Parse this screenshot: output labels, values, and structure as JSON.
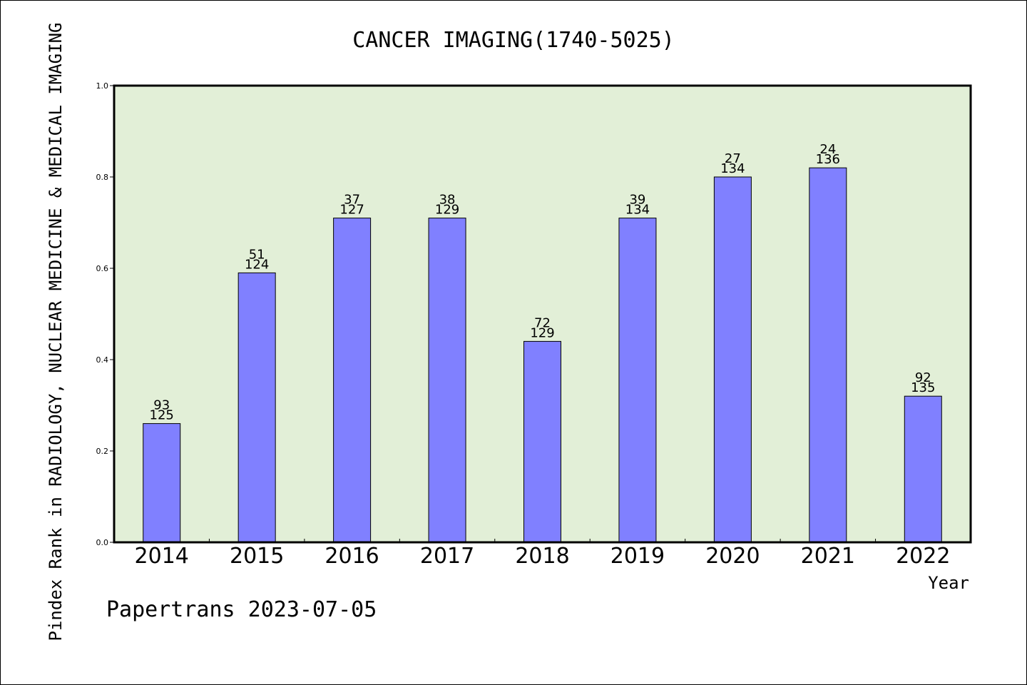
{
  "chart_data": {
    "type": "bar",
    "title": "CANCER IMAGING(1740-5025)",
    "xlabel": "Year",
    "ylabel": "Pindex Rank in RADIOLOGY, NUCLEAR MEDICINE & MEDICAL IMAGING",
    "categories": [
      "2014",
      "2015",
      "2016",
      "2017",
      "2018",
      "2019",
      "2020",
      "2021",
      "2022"
    ],
    "values": [
      0.26,
      0.59,
      0.71,
      0.71,
      0.44,
      0.71,
      0.8,
      0.82,
      0.32
    ],
    "rank": [
      "93",
      "51",
      "37",
      "38",
      "72",
      "39",
      "27",
      "24",
      "92"
    ],
    "total": [
      "125",
      "124",
      "127",
      "129",
      "129",
      "134",
      "134",
      "136",
      "135"
    ],
    "ylim": [
      0,
      1.0
    ],
    "yticks": [
      "0.0",
      "0.2",
      "0.4",
      "0.6",
      "0.8",
      "1.0"
    ],
    "grid": false,
    "colors": {
      "plot_background": "#e2efd7",
      "bar": "#8080ff",
      "bar_edge": "#000000"
    }
  },
  "footer": {
    "credit": "Papertrans 2023-07-05"
  }
}
